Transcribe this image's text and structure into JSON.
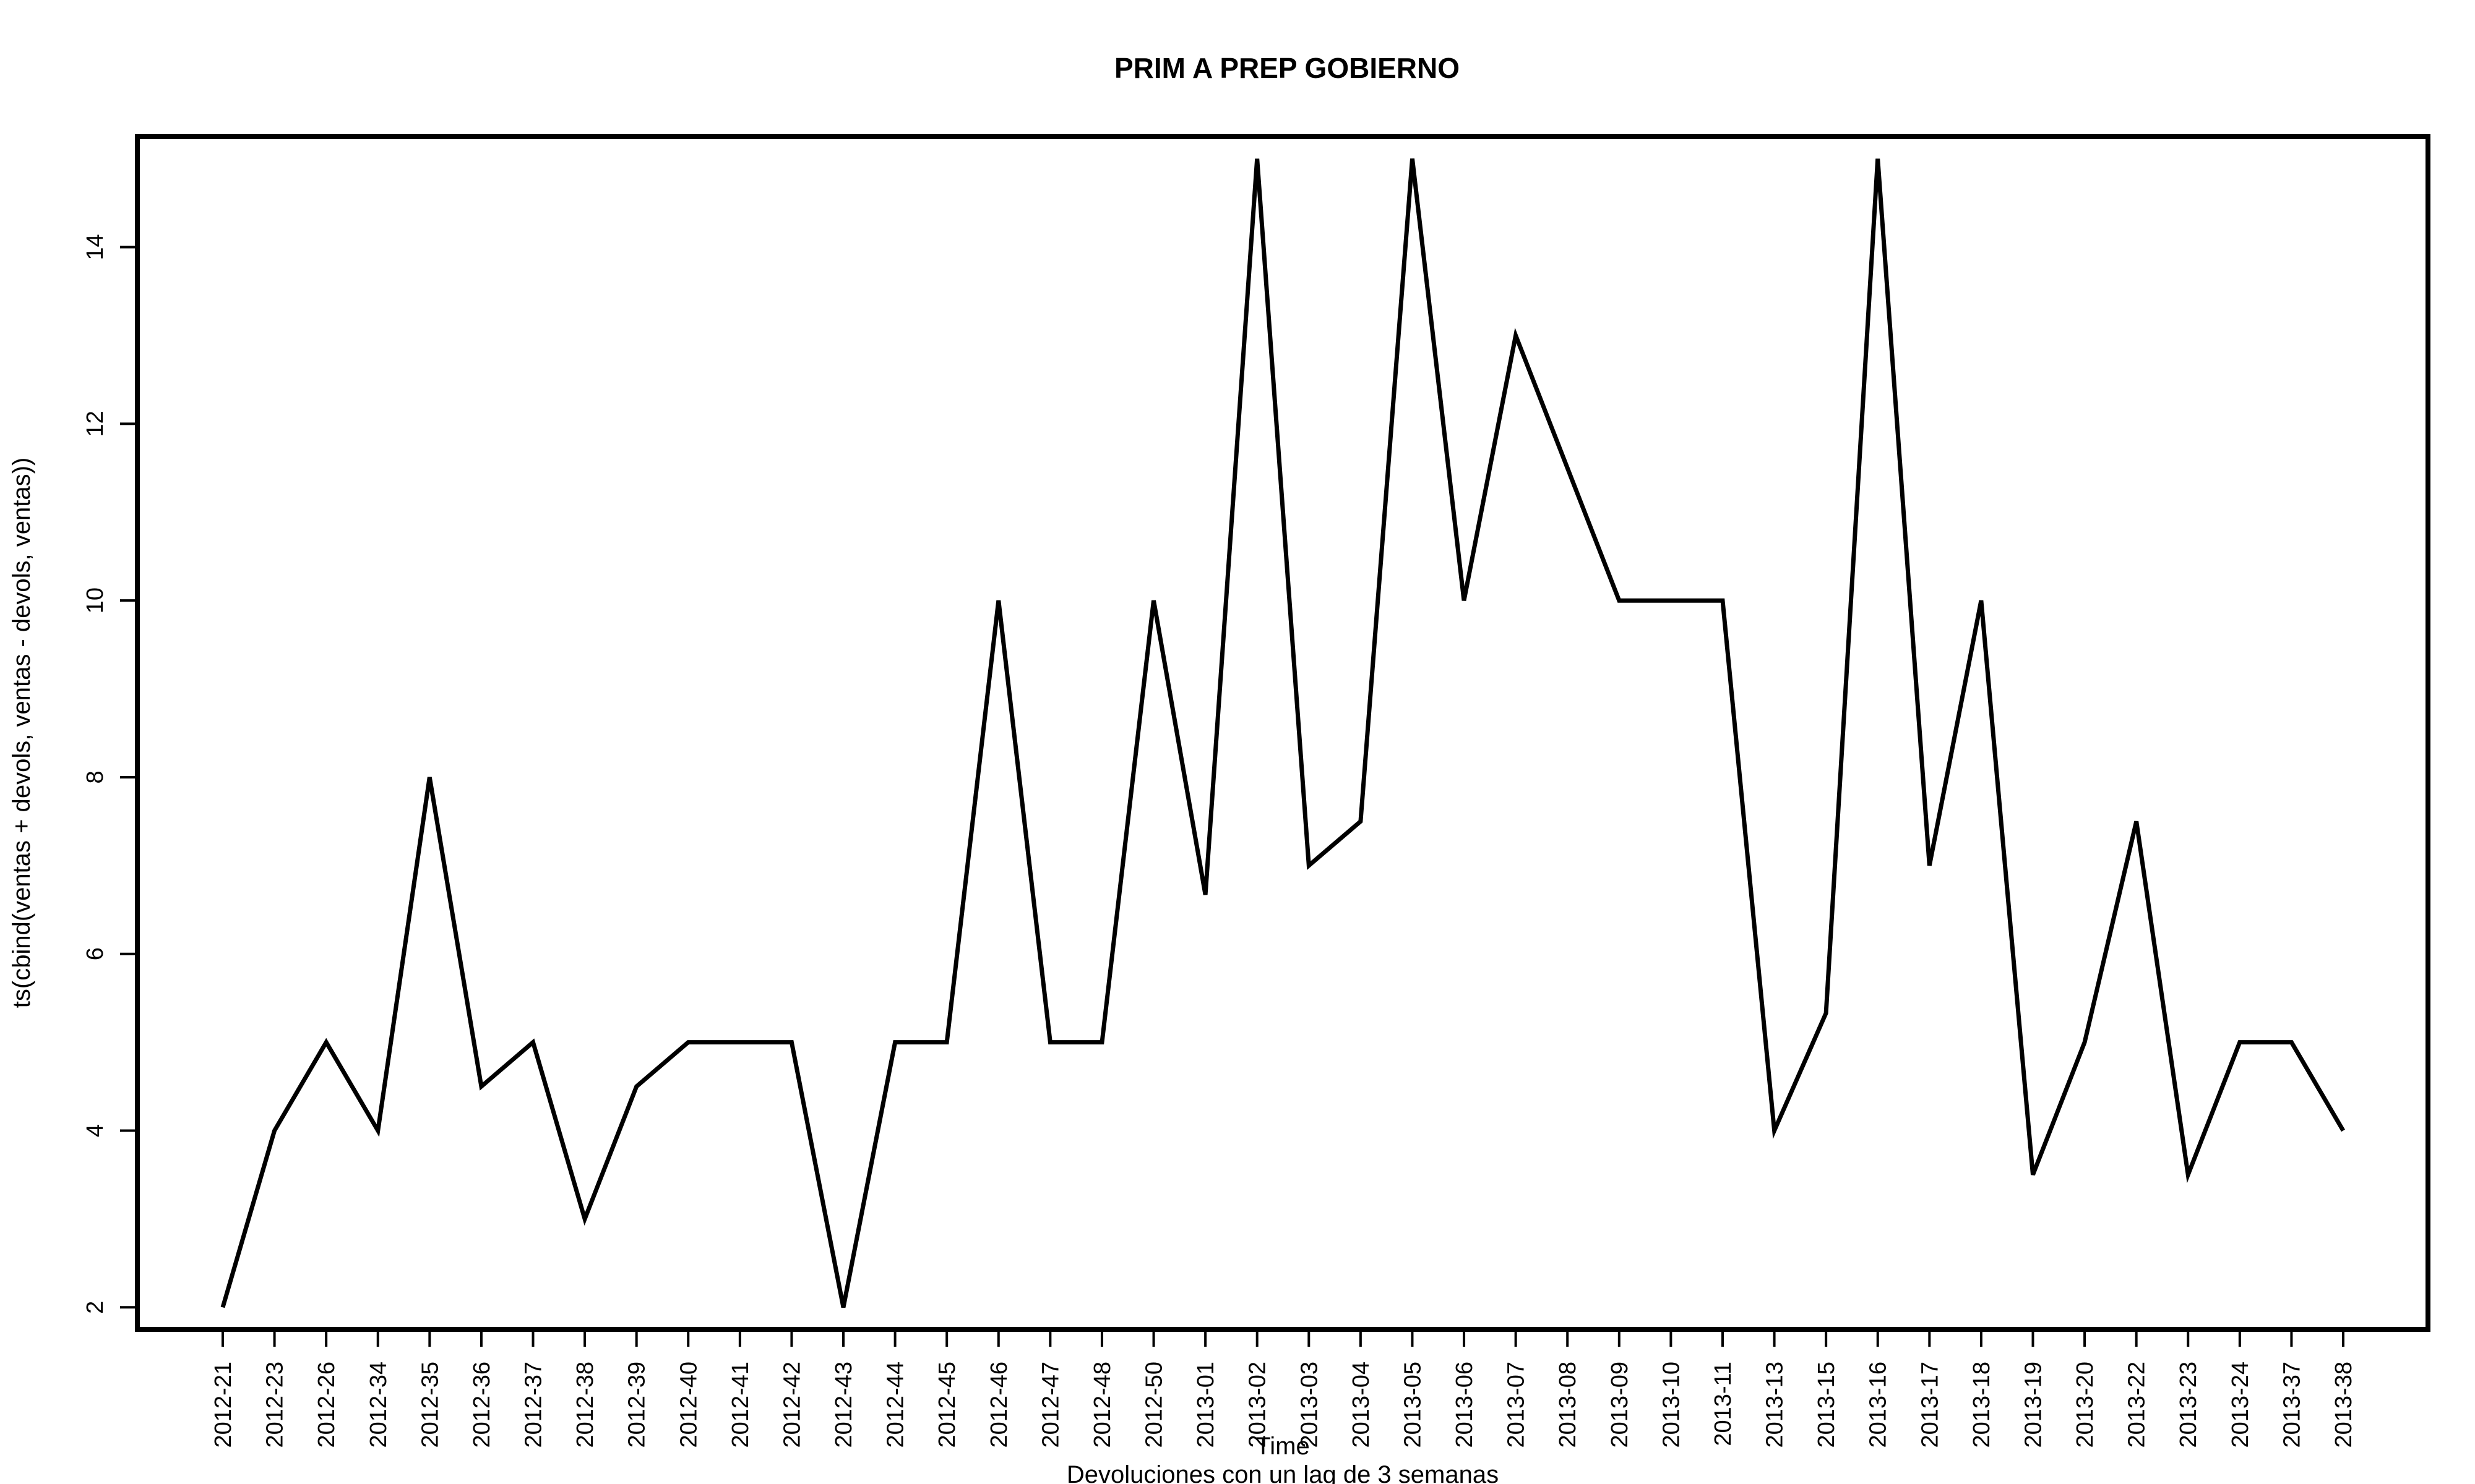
{
  "chart_data": {
    "type": "line",
    "title": "PRIM A PREP GOBIERNO",
    "xlabel": "Time",
    "subtitle": "Devoluciones con un lag de 3 semanas",
    "ylabel": "ts(cbind(ventas + devols, ventas - devols, ventas))",
    "categories": [
      "2012-21",
      "2012-23",
      "2012-26",
      "2012-34",
      "2012-35",
      "2012-36",
      "2012-37",
      "2012-38",
      "2012-39",
      "2012-40",
      "2012-41",
      "2012-42",
      "2012-43",
      "2012-44",
      "2012-45",
      "2012-46",
      "2012-47",
      "2012-48",
      "2012-50",
      "2013-01",
      "2013-02",
      "2013-03",
      "2013-04",
      "2013-05",
      "2013-06",
      "2013-07",
      "2013-08",
      "2013-09",
      "2013-10",
      "2013-11",
      "2013-13",
      "2013-15",
      "2013-16",
      "2013-17",
      "2013-18",
      "2013-19",
      "2013-20",
      "2013-22",
      "2013-23",
      "2013-24",
      "2013-37",
      "2013-38"
    ],
    "values": [
      2,
      4,
      5,
      4,
      8,
      4.5,
      5,
      3,
      4.5,
      5,
      5,
      5,
      2,
      5,
      5,
      10,
      5,
      5,
      10,
      6.67,
      15,
      7,
      7.5,
      15,
      10,
      13,
      11.5,
      10,
      10,
      10,
      4,
      5.33,
      15,
      7,
      10,
      3.5,
      5,
      7.5,
      3.5,
      5,
      5,
      4
    ],
    "ylim": [
      1.75,
      15.25
    ],
    "yticks": [
      "2",
      "4",
      "6",
      "8",
      "10",
      "12",
      "14"
    ],
    "grid": false,
    "legend": "none"
  }
}
